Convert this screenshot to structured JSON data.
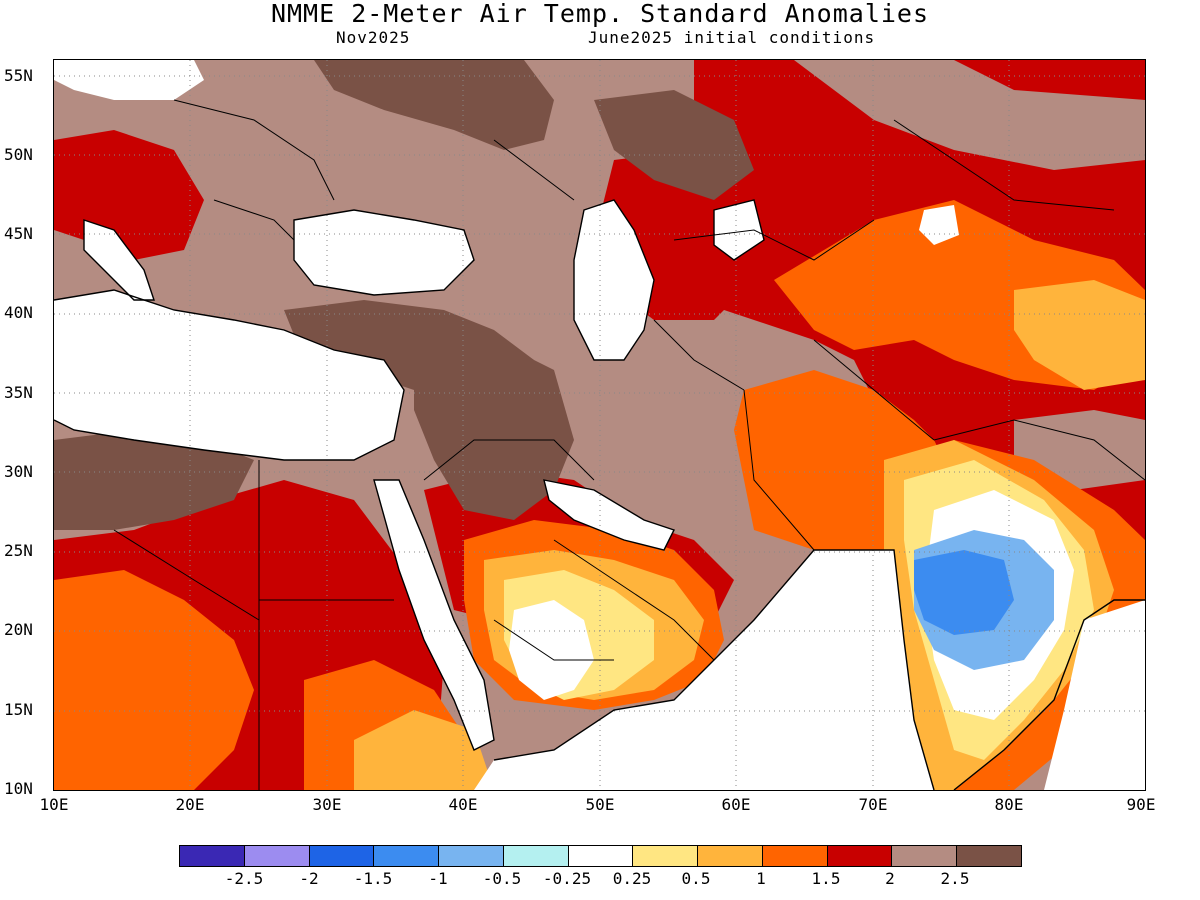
{
  "header": {
    "title": "NMME 2-Meter Air Temp. Standard Anomalies",
    "subtitle_left": "Nov2025",
    "subtitle_right": "June2025 initial conditions"
  },
  "axes": {
    "lat_labels": [
      "55N",
      "50N",
      "45N",
      "40N",
      "35N",
      "30N",
      "25N",
      "20N",
      "15N",
      "10N"
    ],
    "lon_labels": [
      "10E",
      "20E",
      "30E",
      "40E",
      "50E",
      "60E",
      "70E",
      "80E",
      "90E"
    ]
  },
  "legend": {
    "labels": [
      "-2.5",
      "-2",
      "-1.5",
      "-1",
      "-0.5",
      "-0.25",
      "0.25",
      "0.5",
      "1",
      "1.5",
      "2",
      "2.5"
    ],
    "colors": [
      "#3a28b4",
      "#9c8cf0",
      "#1e64e6",
      "#3c8cf0",
      "#78b4f0",
      "#b4f0f0",
      "#ffffff",
      "#ffe682",
      "#ffb43c",
      "#ff6400",
      "#c80000",
      "#b48c82",
      "#7a5246"
    ]
  },
  "map_data": {
    "region": {
      "lon_range": [
        10,
        90
      ],
      "lat_range": [
        10,
        56
      ]
    },
    "variable": "2-Meter Air Temp. Standard Anomalies",
    "colors": {
      "brown_dark": "#7a5246",
      "brown_light": "#b48c82",
      "red": "#c80000",
      "orange": "#ff6400",
      "light_orange": "#ffb43c",
      "yellow": "#ffe682",
      "white": "#ffffff",
      "light_blue": "#78b4f0",
      "mid_blue": "#3c8cf0"
    }
  }
}
